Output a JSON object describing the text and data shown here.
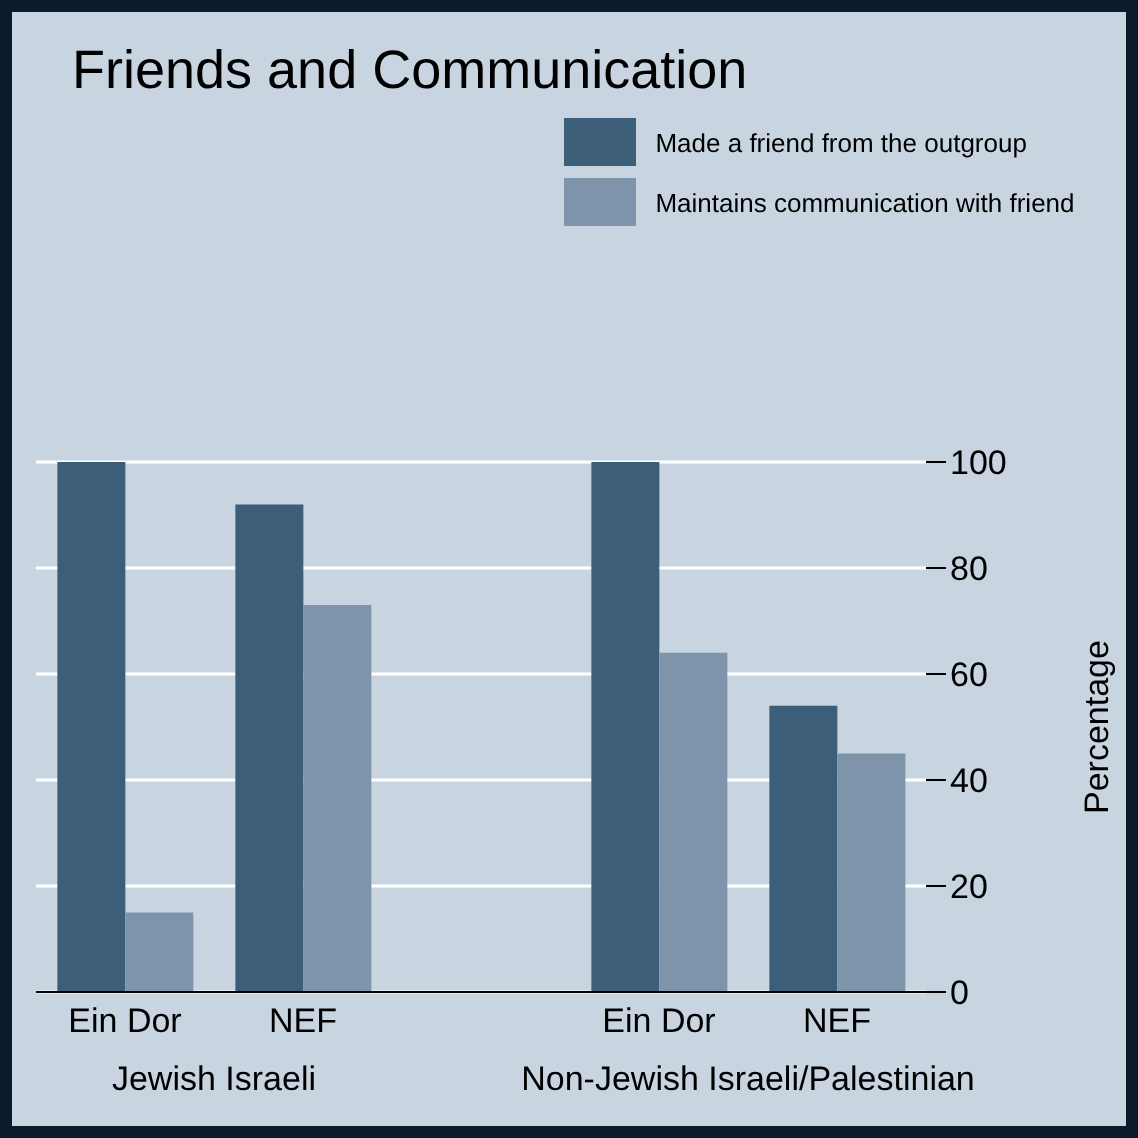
{
  "chart_data": {
    "type": "bar",
    "title": "Friends and Communication",
    "categories": [
      "Ein Dor",
      "NEF",
      null,
      "Ein Dor",
      "NEF"
    ],
    "series": [
      {
        "name": "Made a friend from the outgroup",
        "color": "#3d5e79",
        "values": [
          100,
          92,
          null,
          100,
          54
        ]
      },
      {
        "name": "Maintains communication with friend",
        "color": "#7d94aa",
        "values": [
          15,
          73,
          null,
          64,
          45
        ]
      }
    ],
    "ylabel": "Percentage",
    "ylim": [
      0,
      100
    ],
    "yticks": [
      0,
      20,
      40,
      60,
      80,
      100
    ],
    "grid": "y",
    "legend": "top",
    "annotations": [
      "Jewish Israeli",
      "Non-Jewish Israeli/Palestinian"
    ]
  }
}
